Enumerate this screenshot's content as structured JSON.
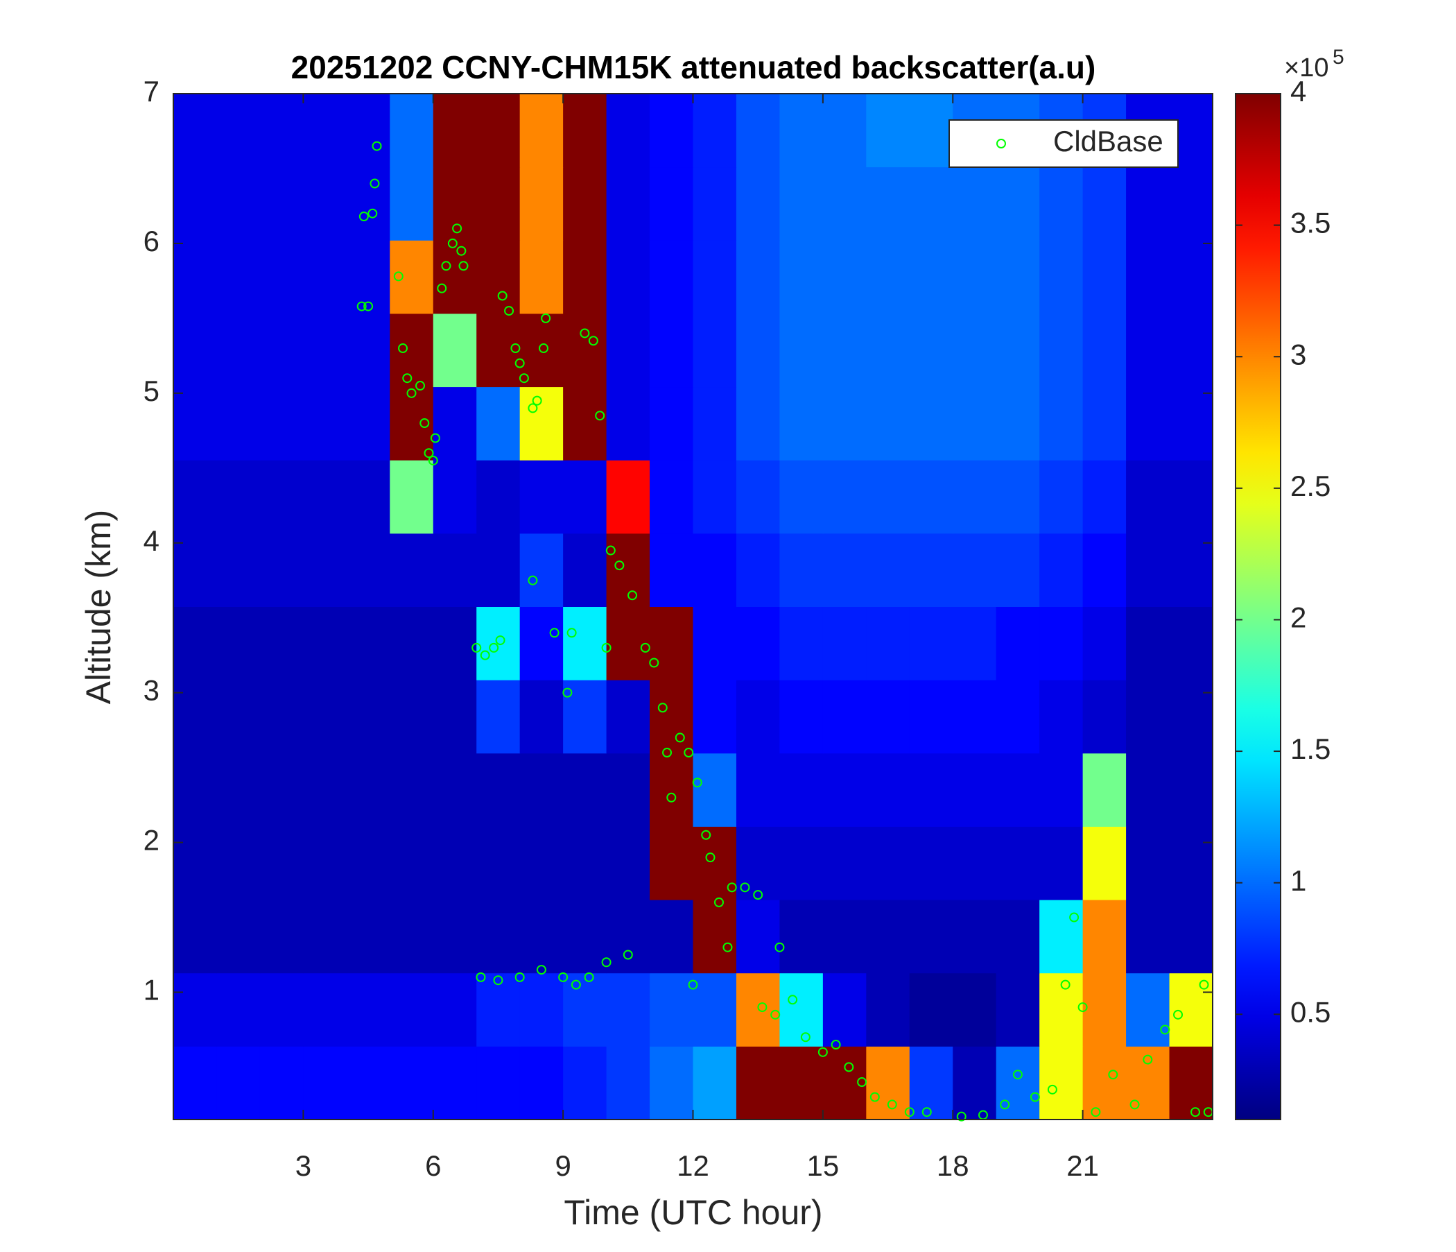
{
  "chart_data": {
    "type": "heatmap",
    "title": "20251202 CCNY-CHM15K attenuated backscatter(a.u)",
    "x_label": "Time (UTC hour)",
    "y_label": "Altitude (km)",
    "xlim": [
      0,
      24
    ],
    "xticks": [
      3,
      6,
      9,
      12,
      15,
      18,
      21
    ],
    "ylim": [
      0.15,
      7
    ],
    "yticks": [
      1,
      2,
      3,
      4,
      5,
      6,
      7
    ],
    "colormap": "jet",
    "clim": [
      0.1,
      4
    ],
    "cticks": [
      0.5,
      1,
      1.5,
      2,
      2.5,
      3,
      3.5,
      4
    ],
    "colorbar_multiplier": {
      "base": "×10",
      "exponent": "5"
    },
    "z": [
      [
        0.6,
        0.6,
        0.6,
        0.6,
        0.6,
        0.6,
        0.6,
        0.6,
        0.6,
        0.7,
        0.8,
        1.0,
        1.2,
        4,
        4,
        4,
        3,
        0.8,
        0.3,
        1,
        2.5,
        3,
        3,
        4
      ],
      [
        0.5,
        0.5,
        0.5,
        0.5,
        0.5,
        0.5,
        0.5,
        0.7,
        0.7,
        0.8,
        0.8,
        0.9,
        0.9,
        3,
        1.5,
        0.5,
        0.3,
        0.2,
        0.2,
        0.3,
        2.5,
        3,
        1,
        2.5
      ],
      [
        0.3,
        0.3,
        0.3,
        0.3,
        0.3,
        0.3,
        0.3,
        0.3,
        0.3,
        0.3,
        0.3,
        0.3,
        4,
        0.5,
        0.3,
        0.3,
        0.3,
        0.3,
        0.3,
        0.3,
        1.5,
        3,
        0.3,
        0.3
      ],
      [
        0.3,
        0.3,
        0.3,
        0.3,
        0.3,
        0.3,
        0.3,
        0.3,
        0.3,
        0.3,
        0.3,
        4,
        4,
        0.4,
        0.4,
        0.4,
        0.4,
        0.4,
        0.4,
        0.4,
        0.4,
        2.5,
        0.3,
        0.3
      ],
      [
        0.3,
        0.3,
        0.3,
        0.3,
        0.3,
        0.3,
        0.3,
        0.3,
        0.3,
        0.3,
        0.3,
        4,
        1,
        0.5,
        0.5,
        0.5,
        0.5,
        0.5,
        0.5,
        0.5,
        0.5,
        2,
        0.3,
        0.3
      ],
      [
        0.3,
        0.3,
        0.3,
        0.3,
        0.3,
        0.3,
        0.3,
        0.8,
        0.4,
        0.8,
        0.4,
        4,
        0.6,
        0.5,
        0.6,
        0.6,
        0.6,
        0.6,
        0.6,
        0.6,
        0.5,
        0.4,
        0.3,
        0.3
      ],
      [
        0.3,
        0.3,
        0.3,
        0.3,
        0.3,
        0.3,
        0.3,
        1.5,
        0.6,
        1.5,
        4,
        4,
        0.6,
        0.6,
        0.7,
        0.7,
        0.7,
        0.7,
        0.7,
        0.6,
        0.6,
        0.5,
        0.3,
        0.3
      ],
      [
        0.4,
        0.4,
        0.4,
        0.4,
        0.4,
        0.4,
        0.4,
        0.4,
        0.8,
        0.4,
        4,
        0.6,
        0.6,
        0.7,
        0.8,
        0.8,
        0.8,
        0.8,
        0.8,
        0.8,
        0.7,
        0.6,
        0.4,
        0.4
      ],
      [
        0.4,
        0.4,
        0.4,
        0.4,
        0.4,
        2,
        0.5,
        0.4,
        0.5,
        0.5,
        3.5,
        0.6,
        0.7,
        0.8,
        0.9,
        0.9,
        0.9,
        0.9,
        0.9,
        0.9,
        0.8,
        0.7,
        0.4,
        0.4
      ],
      [
        0.5,
        0.5,
        0.5,
        0.5,
        0.5,
        4,
        0.5,
        1,
        2.5,
        4,
        0.5,
        0.6,
        0.7,
        0.9,
        1,
        1,
        1,
        1,
        1,
        1,
        0.9,
        0.8,
        0.5,
        0.5
      ],
      [
        0.5,
        0.5,
        0.5,
        0.5,
        0.5,
        4,
        2,
        4,
        4,
        4,
        0.5,
        0.6,
        0.7,
        0.9,
        1,
        1,
        1,
        1,
        1,
        1,
        0.9,
        0.8,
        0.5,
        0.5
      ],
      [
        0.5,
        0.5,
        0.5,
        0.5,
        0.5,
        3,
        4,
        4,
        3,
        4,
        0.5,
        0.6,
        0.7,
        0.9,
        1,
        1,
        1,
        1,
        1,
        1,
        0.9,
        0.8,
        0.5,
        0.5
      ],
      [
        0.5,
        0.5,
        0.5,
        0.5,
        0.5,
        1,
        4,
        4,
        3,
        4,
        0.5,
        0.6,
        0.7,
        0.9,
        1,
        1,
        1,
        1,
        1,
        1,
        0.9,
        0.8,
        0.5,
        0.5
      ],
      [
        0.5,
        0.5,
        0.5,
        0.5,
        0.5,
        1,
        4,
        4,
        3,
        4,
        0.5,
        0.6,
        0.7,
        0.9,
        1,
        1,
        1.1,
        1.1,
        1,
        1,
        0.9,
        0.8,
        0.5,
        0.5
      ]
    ],
    "series": [
      {
        "name": "CldBase",
        "type": "scatter",
        "color": "#00ff00",
        "x": [
          4.35,
          4.5,
          4.4,
          4.6,
          4.65,
          4.7,
          5.2,
          5.3,
          5.4,
          5.5,
          5.7,
          5.8,
          5.9,
          6.0,
          6.05,
          6.2,
          6.3,
          6.45,
          6.55,
          6.65,
          6.7,
          7.0,
          7.2,
          7.4,
          7.55,
          7.6,
          7.75,
          7.9,
          8.0,
          8.1,
          8.3,
          8.4,
          8.55,
          8.6,
          8.3,
          8.8,
          9.1,
          9.2,
          9.5,
          9.7,
          9.85,
          10.0,
          10.1,
          10.3,
          10.6,
          10.9,
          11.1,
          11.3,
          11.4,
          11.5,
          11.7,
          11.9,
          12.1,
          12.3,
          12.4,
          12.6,
          12.8,
          12.9,
          13.2,
          13.5,
          13.6,
          13.9,
          14.0,
          14.3,
          14.6,
          15.0,
          15.3,
          15.6,
          15.9,
          16.2,
          16.6,
          17.0,
          17.4,
          18.2,
          18.7,
          19.2,
          19.5,
          19.9,
          20.3,
          20.6,
          20.8,
          21.0,
          21.3,
          21.7,
          22.2,
          22.5,
          22.9,
          23.2,
          23.6,
          23.8,
          23.9,
          7.1,
          7.5,
          8.0,
          8.5,
          9.0,
          9.3,
          9.6,
          10.0,
          10.5,
          12.0
        ],
        "y": [
          5.58,
          5.58,
          6.18,
          6.2,
          6.4,
          6.65,
          5.78,
          5.3,
          5.1,
          5.0,
          5.05,
          4.8,
          4.6,
          4.55,
          4.7,
          5.7,
          5.85,
          6.0,
          6.1,
          5.95,
          5.85,
          3.3,
          3.25,
          3.3,
          3.35,
          5.65,
          5.55,
          5.3,
          5.2,
          5.1,
          4.9,
          4.95,
          5.3,
          5.5,
          3.75,
          3.4,
          3.0,
          3.4,
          5.4,
          5.35,
          4.85,
          3.3,
          3.95,
          3.85,
          3.65,
          3.3,
          3.2,
          2.9,
          2.6,
          2.3,
          2.7,
          2.6,
          2.4,
          2.05,
          1.9,
          1.6,
          1.3,
          1.7,
          1.7,
          1.65,
          0.9,
          0.85,
          1.3,
          0.95,
          0.7,
          0.6,
          0.65,
          0.5,
          0.4,
          0.3,
          0.25,
          0.2,
          0.2,
          0.17,
          0.18,
          0.25,
          0.45,
          0.3,
          0.35,
          1.05,
          1.5,
          0.9,
          0.2,
          0.45,
          0.25,
          0.55,
          0.75,
          0.85,
          0.2,
          1.05,
          0.2,
          1.1,
          1.08,
          1.1,
          1.15,
          1.1,
          1.05,
          1.1,
          1.2,
          1.25,
          1.05
        ]
      }
    ],
    "legend": "northeast"
  }
}
